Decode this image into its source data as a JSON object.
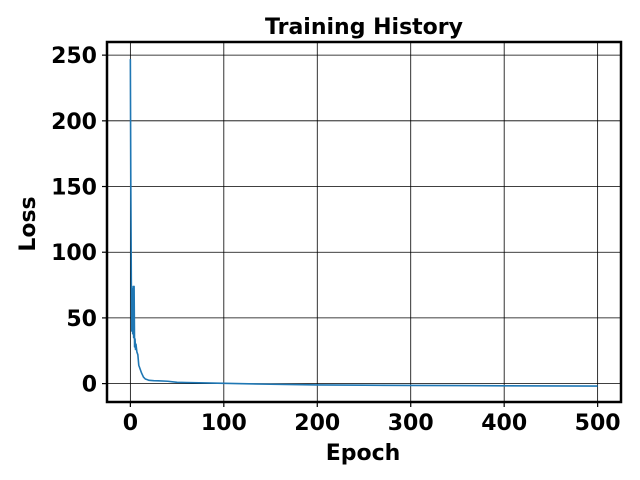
{
  "chart_data": {
    "type": "line",
    "title": "Training History",
    "xlabel": "Epoch",
    "ylabel": "Loss",
    "xlim": [
      -25,
      525
    ],
    "ylim": [
      -14,
      260
    ],
    "xticks": [
      0,
      100,
      200,
      300,
      400,
      500
    ],
    "yticks": [
      0,
      50,
      100,
      150,
      200,
      250
    ],
    "xtick_labels": [
      "0",
      "100",
      "200",
      "300",
      "400",
      "500"
    ],
    "ytick_labels": [
      "0",
      "50",
      "100",
      "150",
      "200",
      "250"
    ],
    "grid": true,
    "series": [
      {
        "color": "#1f77b4",
        "x": [
          0,
          0.5,
          1,
          1.5,
          2,
          2.5,
          3,
          3.5,
          4,
          4.5,
          5,
          5.5,
          6,
          7,
          8,
          9,
          10,
          11,
          12,
          14,
          16,
          18,
          20,
          25,
          30,
          40,
          50,
          60,
          80,
          100,
          150,
          200,
          250,
          300,
          350,
          400,
          450,
          500
        ],
        "y": [
          247,
          150,
          80,
          40,
          72,
          38,
          74,
          35,
          74,
          28,
          34,
          26,
          30,
          24,
          22,
          14,
          12,
          10,
          8,
          5,
          3.5,
          3,
          2.5,
          2.2,
          2.1,
          1.8,
          1,
          0.8,
          0.5,
          0.2,
          -0.5,
          -1,
          -1.2,
          -1.4,
          -1.5,
          -1.7,
          -1.8,
          -1.9
        ]
      }
    ]
  }
}
